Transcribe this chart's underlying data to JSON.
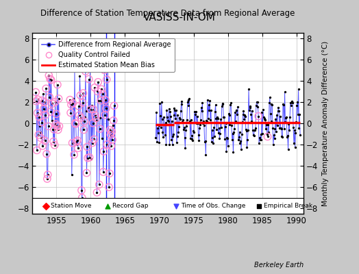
{
  "title": "VASISS-IN-OM",
  "subtitle": "Difference of Station Temperature Data from Regional Average",
  "ylabel": "Monthly Temperature Anomaly Difference (°C)",
  "xlim": [
    1951.5,
    1991.0
  ],
  "ylim": [
    -8.5,
    8.5
  ],
  "yticks": [
    -8,
    -6,
    -4,
    -2,
    0,
    2,
    4,
    6,
    8
  ],
  "xticks": [
    1955,
    1960,
    1965,
    1970,
    1975,
    1980,
    1985,
    1990
  ],
  "bg_color": "#c8c8c8",
  "plot_bg_color": "#ffffff",
  "line_color": "#5555ff",
  "bias_color": "#ff0000",
  "qc_color": "#ff88cc",
  "record_gap_x": 1973.0,
  "vertical_line_x1": 1962.3,
  "vertical_line_x2": 1963.5,
  "bias_x1": 1969.5,
  "bias_x2": 1972.2,
  "bias_x3": 1990.5,
  "bias_y1": -0.1,
  "bias_y2": 0.05,
  "seed": 17
}
